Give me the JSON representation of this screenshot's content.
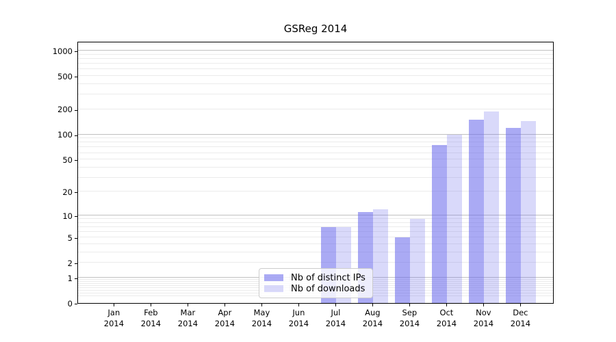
{
  "chart_data": {
    "type": "bar",
    "title": "GSReg 2014",
    "categories": [
      "Jan",
      "Feb",
      "Mar",
      "Apr",
      "May",
      "Jun",
      "Jul",
      "Aug",
      "Sep",
      "Oct",
      "Nov",
      "Dec"
    ],
    "category_year": "2014",
    "series": [
      {
        "name": "Nb of distinct IPs",
        "color": "rgba(105,105,235,0.57)",
        "values": [
          0,
          0,
          0,
          0,
          0,
          0,
          7,
          11,
          5,
          75,
          150,
          120
        ]
      },
      {
        "name": "Nb of downloads",
        "color": "rgba(105,105,235,0.25)",
        "values": [
          0,
          0,
          0,
          0,
          0,
          0,
          7,
          12,
          9,
          100,
          190,
          145
        ]
      }
    ],
    "xlabel": "",
    "ylabel": "",
    "y_axis": {
      "scale": "log10(value+1)",
      "ticks": [
        0,
        1,
        2,
        5,
        10,
        20,
        50,
        100,
        200,
        500,
        1000
      ],
      "ylim": [
        0,
        1300
      ]
    },
    "grid": "on",
    "legend_position": "inside-bottom-center",
    "colors": {
      "major_gridline": "#c0c0c0",
      "minor_gridline": "#ebebeb",
      "spine": "#000000",
      "background": "#ffffff"
    }
  }
}
